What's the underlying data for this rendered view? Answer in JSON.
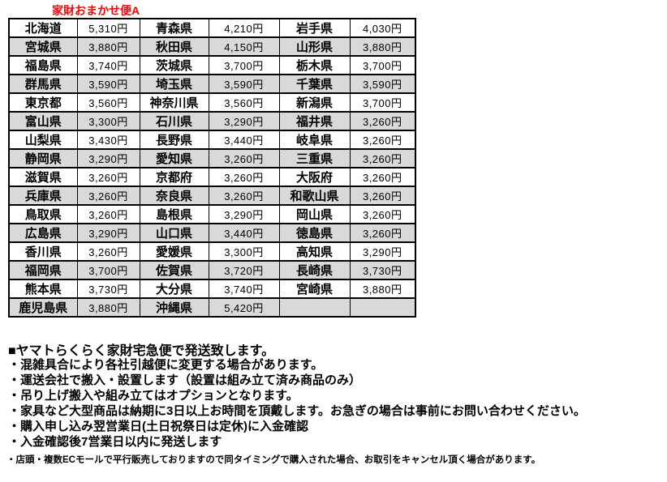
{
  "title": "家財おまかせ便A",
  "colors": {
    "title_red": "#ff0000",
    "alt_row_gray": "#d9d9d9",
    "border_black": "#000000"
  },
  "table": {
    "columns": [
      "prefecture",
      "price",
      "prefecture",
      "price",
      "prefecture",
      "price"
    ],
    "rows": [
      [
        "北海道",
        "5,310円",
        "青森県",
        "4,210円",
        "岩手県",
        "4,030円"
      ],
      [
        "宮城県",
        "3,880円",
        "秋田県",
        "4,150円",
        "山形県",
        "3,880円"
      ],
      [
        "福島県",
        "3,740円",
        "茨城県",
        "3,700円",
        "栃木県",
        "3,700円"
      ],
      [
        "群馬県",
        "3,590円",
        "埼玉県",
        "3,590円",
        "千葉県",
        "3,590円"
      ],
      [
        "東京都",
        "3,560円",
        "神奈川県",
        "3,560円",
        "新潟県",
        "3,700円"
      ],
      [
        "富山県",
        "3,300円",
        "石川県",
        "3,290円",
        "福井県",
        "3,260円"
      ],
      [
        "山梨県",
        "3,430円",
        "長野県",
        "3,440円",
        "岐阜県",
        "3,260円"
      ],
      [
        "静岡県",
        "3,290円",
        "愛知県",
        "3,260円",
        "三重県",
        "3,260円"
      ],
      [
        "滋賀県",
        "3,260円",
        "京都府",
        "3,260円",
        "大阪府",
        "3,260円"
      ],
      [
        "兵庫県",
        "3,260円",
        "奈良県",
        "3,260円",
        "和歌山県",
        "3,260円"
      ],
      [
        "鳥取県",
        "3,260円",
        "島根県",
        "3,290円",
        "岡山県",
        "3,260円"
      ],
      [
        "広島県",
        "3,290円",
        "山口県",
        "3,440円",
        "徳島県",
        "3,260円"
      ],
      [
        "香川県",
        "3,260円",
        "愛媛県",
        "3,300円",
        "高知県",
        "3,290円"
      ],
      [
        "福岡県",
        "3,700円",
        "佐賀県",
        "3,720円",
        "長崎県",
        "3,730円"
      ],
      [
        "熊本県",
        "3,730円",
        "大分県",
        "3,740円",
        "宮崎県",
        "3,880円"
      ],
      [
        "鹿児島県",
        "3,880円",
        "沖縄県",
        "5,420円",
        "",
        ""
      ]
    ]
  },
  "notes": {
    "heading": "■ヤマトらくらく家財宅急便で発送致します。",
    "bullets": [
      "・混雑具合により各社引越便に変更する場合があります。",
      "・運送会社で搬入・設置します（設置は組み立て済み商品のみ）",
      "・吊り上げ搬入や組み立てはオプションとなります。",
      "・家具など大型商品は納期に3日以上お時間を頂戴します。お急ぎの場合は事前にお問い合わせください。",
      "・購入申し込み翌営業日(土日祝祭日は定休)に入金確認",
      "・入金確認後7営業日以内に発送します"
    ],
    "footnote": "・店頭・複数ECモールで平行販売しておりますので同タイミングで購入された場合、お取引をキャンセル頂く場合があります。"
  }
}
